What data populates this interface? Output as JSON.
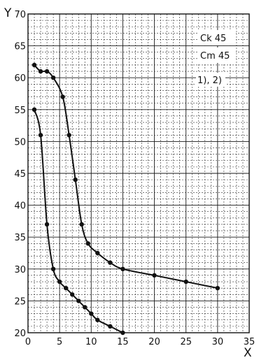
{
  "chart_data": {
    "type": "line",
    "title": "",
    "xlabel": "X",
    "ylabel": "Y",
    "xlim": [
      0,
      35
    ],
    "ylim": [
      20,
      70
    ],
    "x_ticks": [
      0,
      5,
      10,
      15,
      20,
      25,
      30,
      35
    ],
    "y_ticks": [
      20,
      25,
      30,
      35,
      40,
      45,
      50,
      55,
      60,
      65,
      70
    ],
    "grid": true,
    "annotations": [
      "Ck 45",
      "Cm 45",
      "1), 2)"
    ],
    "series": [
      {
        "points": [
          [
            1,
            62
          ],
          [
            2,
            61
          ],
          [
            3,
            61
          ],
          [
            4,
            60
          ],
          [
            5.5,
            57
          ],
          [
            6.5,
            51
          ],
          [
            7.5,
            44
          ],
          [
            8.5,
            37
          ],
          [
            9.5,
            34
          ],
          [
            11,
            32.5
          ],
          [
            13,
            31
          ],
          [
            15,
            30
          ],
          [
            20,
            29
          ],
          [
            25,
            28
          ],
          [
            30,
            27
          ]
        ]
      },
      {
        "points": [
          [
            1,
            55
          ],
          [
            2,
            51
          ],
          [
            3,
            37
          ],
          [
            4,
            30
          ],
          [
            5,
            28
          ],
          [
            6,
            27
          ],
          [
            7,
            26
          ],
          [
            8,
            25
          ],
          [
            9,
            24
          ],
          [
            10,
            23
          ],
          [
            11,
            22
          ],
          [
            13,
            21
          ],
          [
            15,
            20
          ]
        ]
      }
    ]
  }
}
